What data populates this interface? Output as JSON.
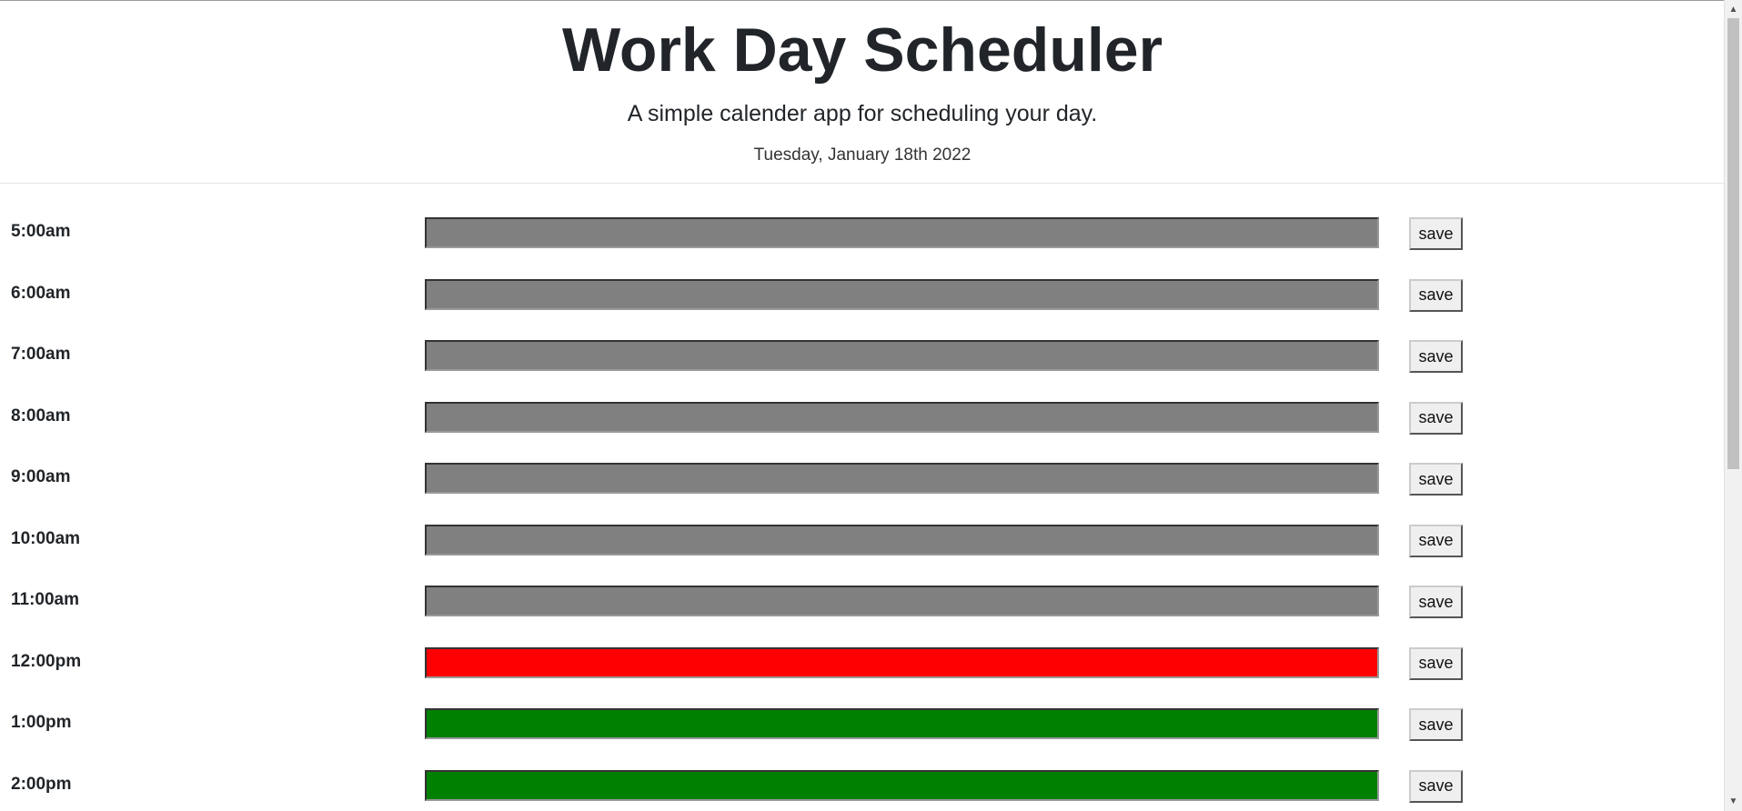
{
  "header": {
    "title": "Work Day Scheduler",
    "lead": "A simple calender app for scheduling your day.",
    "current_day": "Tuesday, January 18th 2022"
  },
  "save_label": "save",
  "colors": {
    "past": "#808080",
    "present": "#ff0000",
    "future": "#008000"
  },
  "rows": [
    {
      "hour": "5:00am",
      "state": "past",
      "text": ""
    },
    {
      "hour": "6:00am",
      "state": "past",
      "text": ""
    },
    {
      "hour": "7:00am",
      "state": "past",
      "text": ""
    },
    {
      "hour": "8:00am",
      "state": "past",
      "text": ""
    },
    {
      "hour": "9:00am",
      "state": "past",
      "text": ""
    },
    {
      "hour": "10:00am",
      "state": "past",
      "text": ""
    },
    {
      "hour": "11:00am",
      "state": "past",
      "text": ""
    },
    {
      "hour": "12:00pm",
      "state": "present",
      "text": ""
    },
    {
      "hour": "1:00pm",
      "state": "future",
      "text": ""
    },
    {
      "hour": "2:00pm",
      "state": "future",
      "text": ""
    }
  ],
  "scrollbar": {
    "up_icon": "triangle-up-icon",
    "down_icon": "triangle-down-icon"
  }
}
